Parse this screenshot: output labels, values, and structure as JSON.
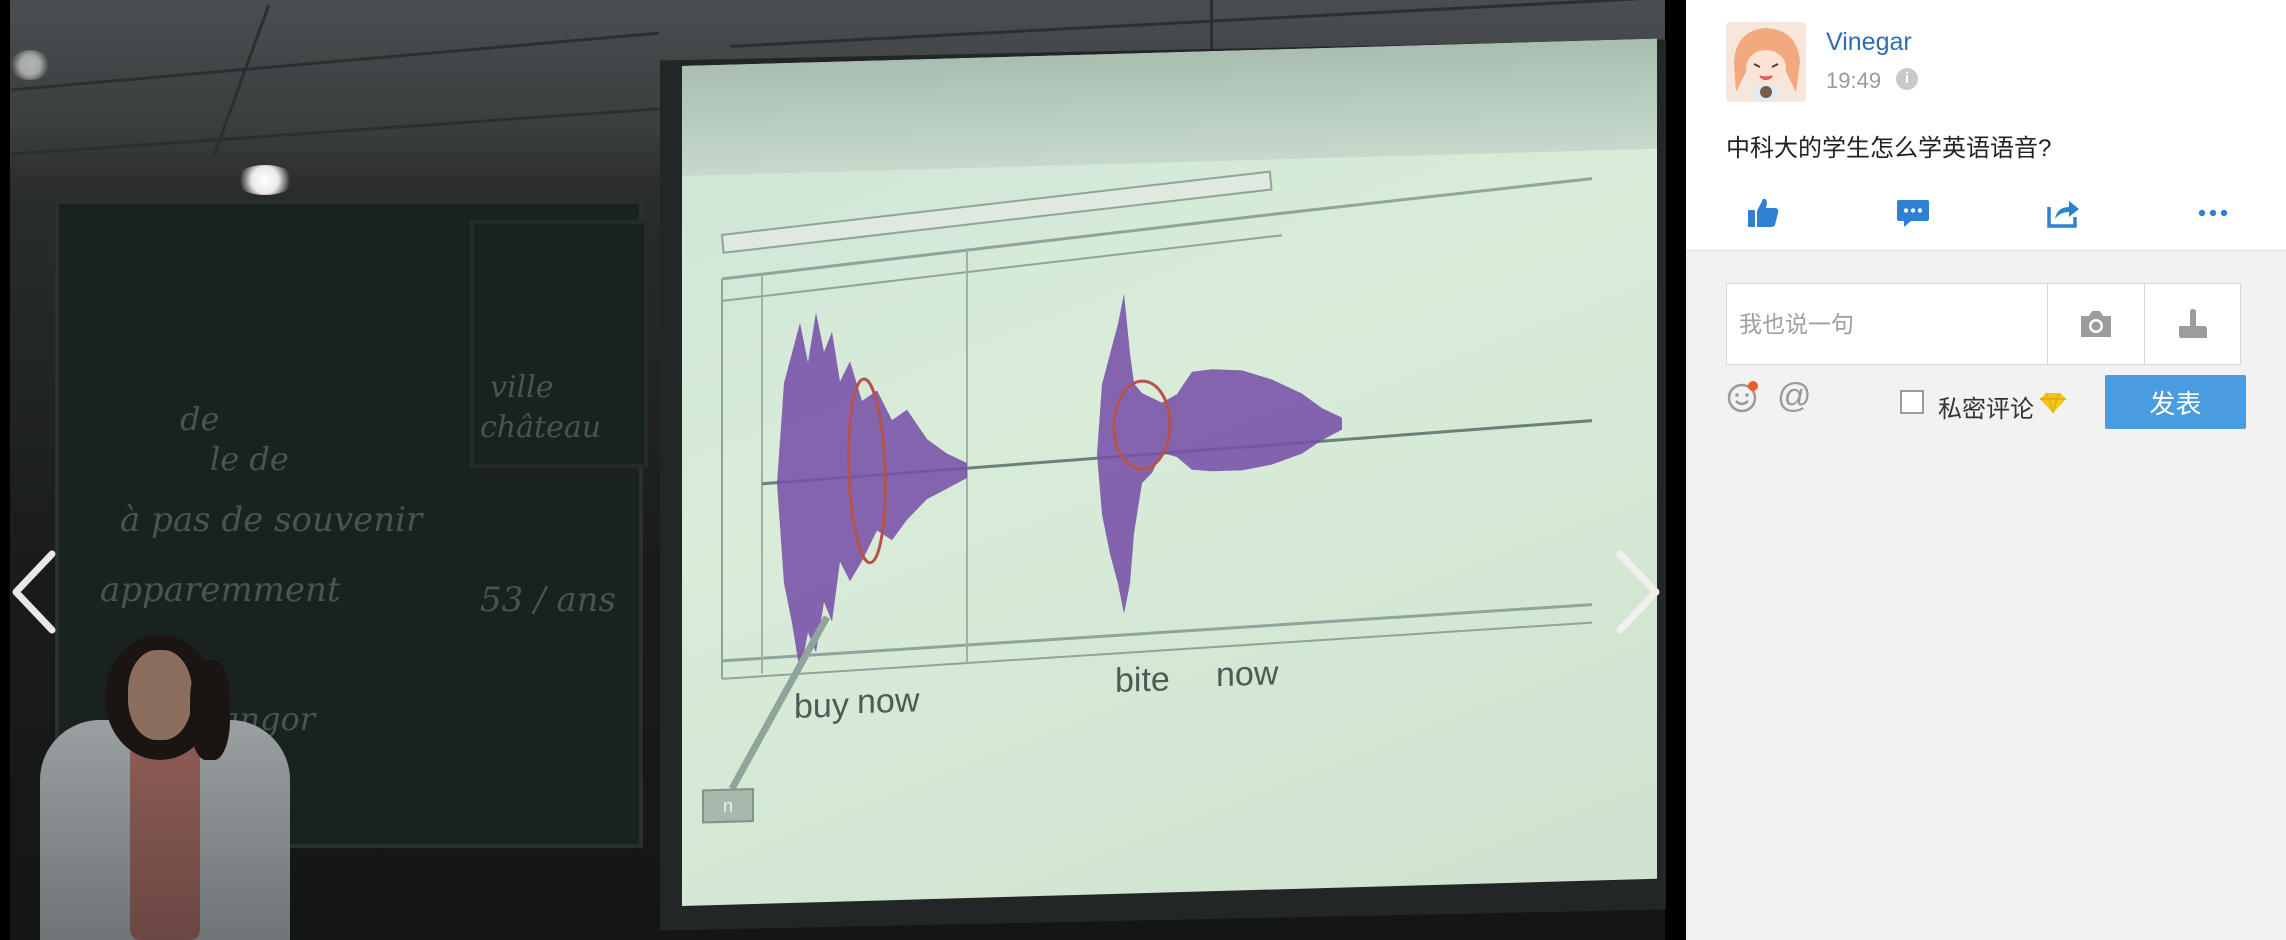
{
  "post": {
    "username": "Vinegar",
    "time": "19:49",
    "text": "中科大的学生怎么学英语语音?"
  },
  "icons": {
    "info": "info-icon",
    "like": "thumbs-up-icon",
    "comment": "comment-icon",
    "share": "share-icon",
    "more": "more-icon",
    "camera": "camera-icon",
    "hand": "pointing-hand-icon",
    "emoji": "smiley-icon",
    "mention": "at-icon",
    "gem": "vip-gem-icon",
    "prev": "chevron-left-icon",
    "next": "chevron-right-icon"
  },
  "comment_box": {
    "placeholder": "我也说一句",
    "at_symbol": "@",
    "private_label": "私密评论",
    "publish_label": "发表"
  },
  "slide": {
    "words": [
      "buy",
      "now",
      "bite",
      "now"
    ],
    "box_label": "n"
  },
  "colors": {
    "accent": "#4a9be0",
    "link": "#2f6db0",
    "action_icon": "#2f80d1",
    "waveform": "#7750a8",
    "gem": "#f4c619"
  }
}
